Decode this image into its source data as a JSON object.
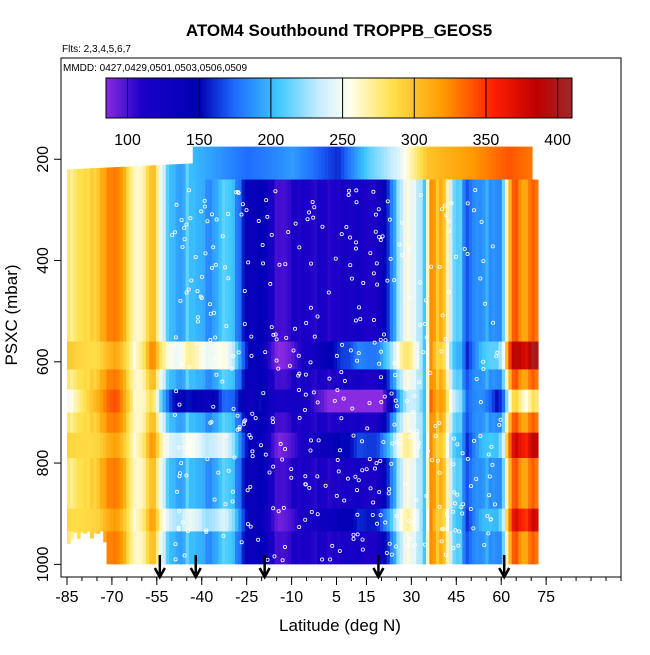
{
  "chart_data": {
    "type": "heatmap",
    "title": "ATOM4 Southbound TROPPB_GEOS5",
    "subtitle_flights": "Flts: 2,3,4,5,6,7",
    "subtitle_dates": "MMDD: 0427,0429,0501,0503,0506,0509",
    "xlabel": "Latitude (deg N)",
    "ylabel": "PSXC (mbar)",
    "xlim": [
      -87,
      100
    ],
    "ylim": [
      1025,
      0
    ],
    "x_ticks": [
      -85,
      -70,
      -55,
      -40,
      -25,
      -10,
      5,
      15,
      30,
      45,
      60,
      75
    ],
    "x_tick_labels": [
      "-85",
      "-70",
      "-55",
      "-40",
      "-25",
      "-10",
      "5",
      "15",
      "30",
      "45",
      "60",
      "75"
    ],
    "y_ticks": [
      200,
      400,
      600,
      800,
      1000
    ],
    "y_tick_labels": [
      "200",
      "400",
      "600",
      "800",
      "1000"
    ],
    "colorbar": {
      "min": 85,
      "max": 410,
      "ticks": [
        100,
        150,
        200,
        250,
        300,
        350,
        400
      ],
      "tick_labels": [
        "100",
        "150",
        "200",
        "250",
        "300",
        "350",
        "400"
      ],
      "stops": [
        {
          "v": 85,
          "c": "#8a2be2"
        },
        {
          "v": 110,
          "c": "#1c00c8"
        },
        {
          "v": 150,
          "c": "#0000b4"
        },
        {
          "v": 175,
          "c": "#1e6cff"
        },
        {
          "v": 205,
          "c": "#3ec8ff"
        },
        {
          "v": 235,
          "c": "#cdeeff"
        },
        {
          "v": 255,
          "c": "#ffffee"
        },
        {
          "v": 285,
          "c": "#ffe04a"
        },
        {
          "v": 320,
          "c": "#ff9a00"
        },
        {
          "v": 355,
          "c": "#ff2000"
        },
        {
          "v": 385,
          "c": "#c00000"
        },
        {
          "v": 410,
          "c": "#a02828"
        }
      ]
    },
    "profile": [
      {
        "lat": -86,
        "v": 270
      },
      {
        "lat": -80,
        "v": 285
      },
      {
        "lat": -75,
        "v": 300
      },
      {
        "lat": -72,
        "v": 320
      },
      {
        "lat": -69,
        "v": 330
      },
      {
        "lat": -66,
        "v": 300
      },
      {
        "lat": -63,
        "v": 260
      },
      {
        "lat": -60,
        "v": 270
      },
      {
        "lat": -57,
        "v": 310
      },
      {
        "lat": -54,
        "v": 240
      },
      {
        "lat": -51,
        "v": 205
      },
      {
        "lat": -48,
        "v": 190
      },
      {
        "lat": -45,
        "v": 210
      },
      {
        "lat": -42,
        "v": 200
      },
      {
        "lat": -39,
        "v": 185
      },
      {
        "lat": -36,
        "v": 195
      },
      {
        "lat": -33,
        "v": 215
      },
      {
        "lat": -30,
        "v": 200
      },
      {
        "lat": -27,
        "v": 160
      },
      {
        "lat": -24,
        "v": 130
      },
      {
        "lat": -21,
        "v": 150
      },
      {
        "lat": -18,
        "v": 120
      },
      {
        "lat": -15,
        "v": 100
      },
      {
        "lat": -12,
        "v": 105
      },
      {
        "lat": -9,
        "v": 112
      },
      {
        "lat": -6,
        "v": 118
      },
      {
        "lat": -3,
        "v": 112
      },
      {
        "lat": 0,
        "v": 115
      },
      {
        "lat": 3,
        "v": 110
      },
      {
        "lat": 6,
        "v": 115
      },
      {
        "lat": 9,
        "v": 108
      },
      {
        "lat": 12,
        "v": 120
      },
      {
        "lat": 15,
        "v": 115
      },
      {
        "lat": 18,
        "v": 118
      },
      {
        "lat": 20,
        "v": 140
      },
      {
        "lat": 22,
        "v": 165
      },
      {
        "lat": 24,
        "v": 200
      },
      {
        "lat": 26,
        "v": 235
      },
      {
        "lat": 28,
        "v": 255
      },
      {
        "lat": 30,
        "v": 250
      },
      {
        "lat": 32,
        "v": 235
      },
      {
        "lat": 34,
        "v": 200
      },
      {
        "lat": 36,
        "v": 330
      },
      {
        "lat": 38,
        "v": 300
      },
      {
        "lat": 40,
        "v": 310
      },
      {
        "lat": 42,
        "v": 250
      },
      {
        "lat": 44,
        "v": 215
      },
      {
        "lat": 46,
        "v": 210
      },
      {
        "lat": 48,
        "v": 165
      },
      {
        "lat": 50,
        "v": 180
      },
      {
        "lat": 53,
        "v": 195
      },
      {
        "lat": 56,
        "v": 190
      },
      {
        "lat": 58,
        "v": 180
      },
      {
        "lat": 60,
        "v": 200
      },
      {
        "lat": 62,
        "v": 290
      },
      {
        "lat": 64,
        "v": 345
      },
      {
        "lat": 66,
        "v": 320
      },
      {
        "lat": 68,
        "v": 310
      },
      {
        "lat": 70,
        "v": 340
      },
      {
        "lat": 72,
        "v": 330
      }
    ],
    "coverage": {
      "lat_min": -85,
      "lat_max": 72,
      "p_top_south": 220,
      "p_top_north": 175,
      "p_bottom": 1000
    },
    "upper_band": {
      "p_top": 175,
      "p_bottom": 240,
      "lat_min": -43,
      "lat_max": 70,
      "segments": [
        {
          "lat": -43,
          "v": 200
        },
        {
          "lat": -25,
          "v": 175
        },
        {
          "lat": -10,
          "v": 190
        },
        {
          "lat": 5,
          "v": 160
        },
        {
          "lat": 15,
          "v": 210
        },
        {
          "lat": 25,
          "v": 240
        },
        {
          "lat": 35,
          "v": 300
        },
        {
          "lat": 50,
          "v": 320
        },
        {
          "lat": 62,
          "v": 340
        },
        {
          "lat": 70,
          "v": 330
        }
      ]
    },
    "horizontal_bands": [
      {
        "p_top": 560,
        "p_bottom": 615,
        "lat_min": -85,
        "lat_max": 72,
        "shift": 40
      },
      {
        "p_top": 655,
        "p_bottom": 700,
        "lat_min": -85,
        "lat_max": 72,
        "shift": -35
      },
      {
        "p_top": 740,
        "p_bottom": 790,
        "lat_min": -85,
        "lat_max": 72,
        "shift": 30
      },
      {
        "p_top": 890,
        "p_bottom": 935,
        "lat_min": -85,
        "lat_max": 72,
        "shift": 25
      }
    ],
    "arrows_lat": [
      -54,
      -42,
      -19,
      19,
      61
    ]
  }
}
